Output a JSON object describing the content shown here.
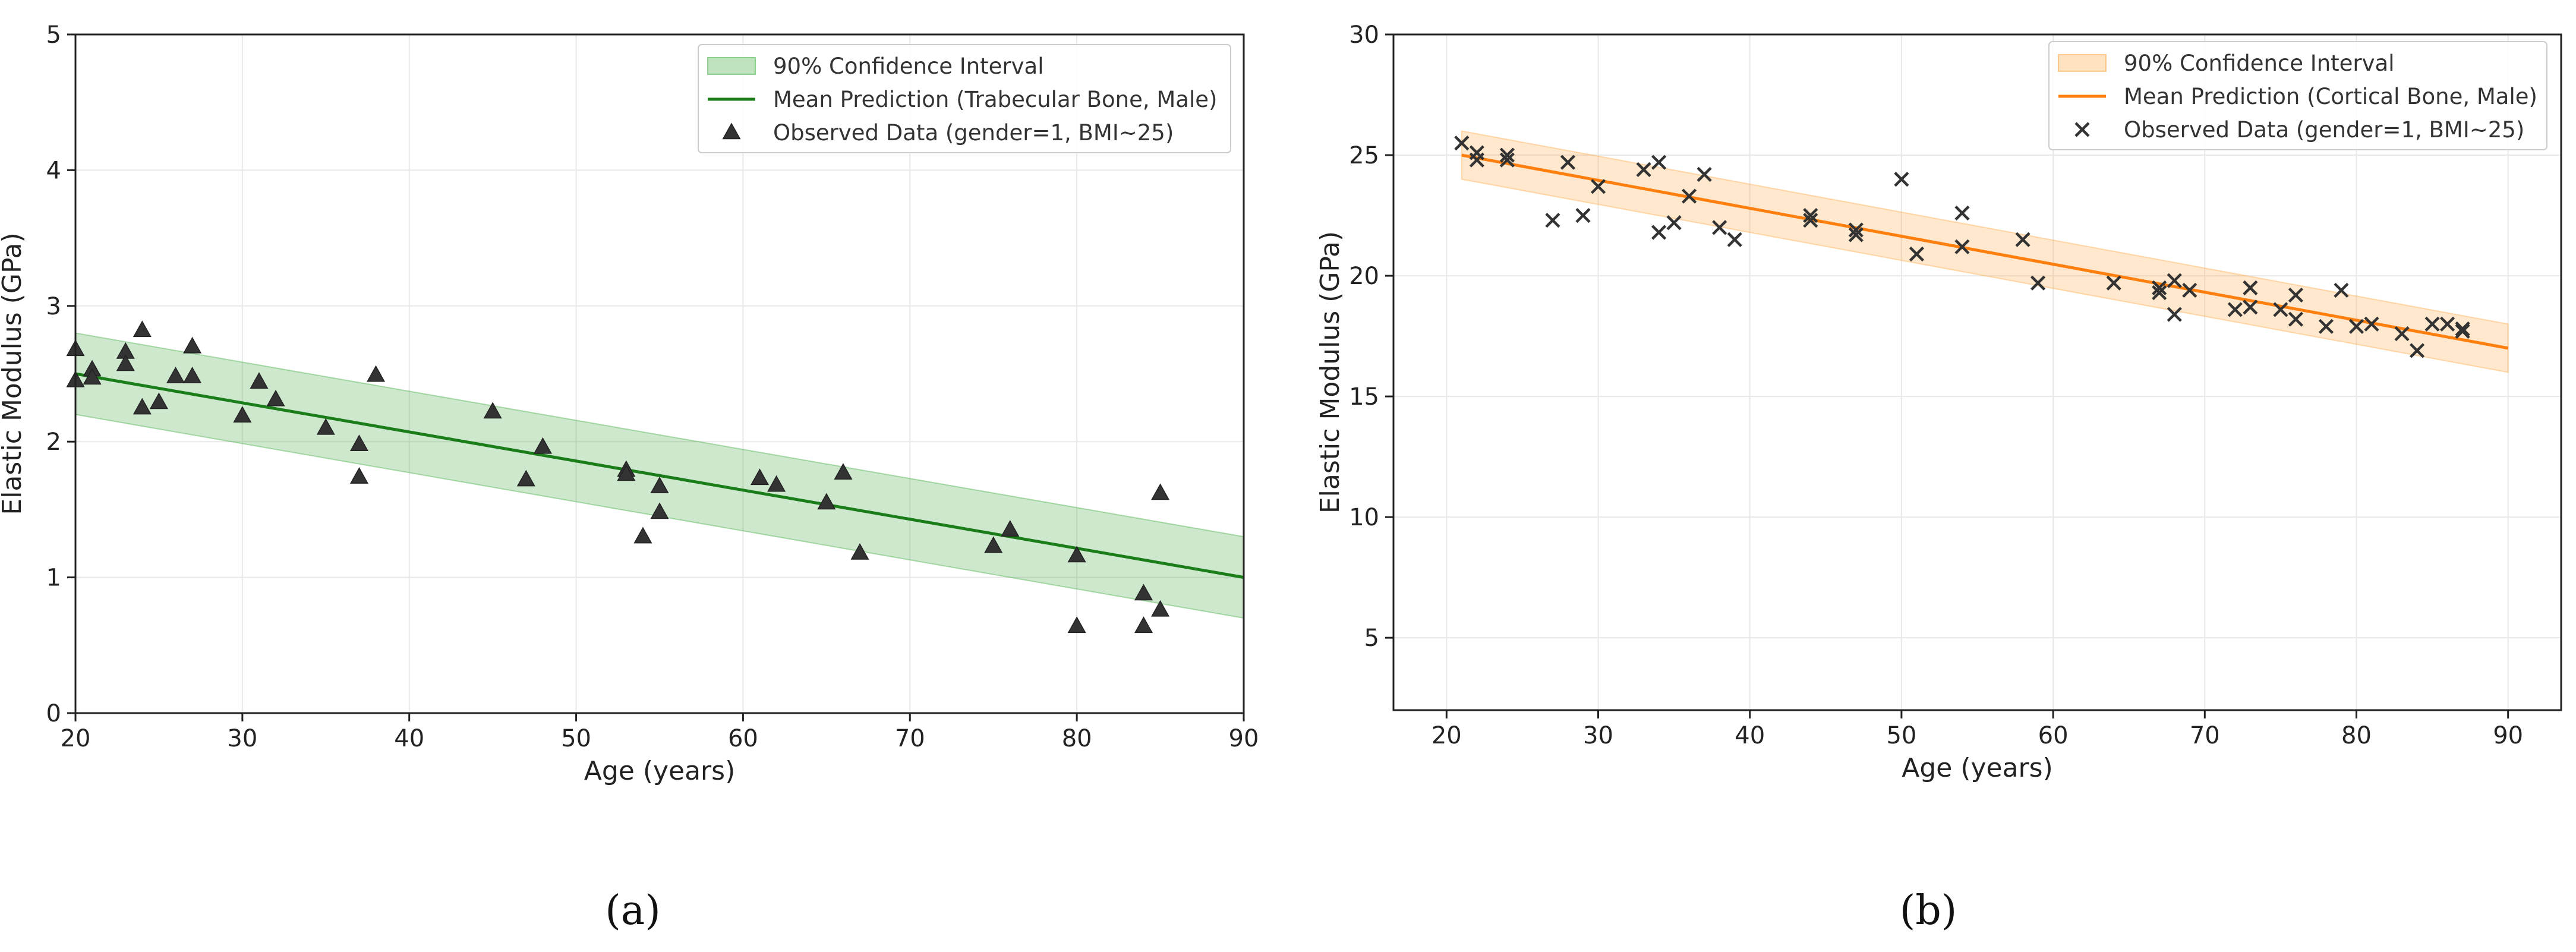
{
  "figure": {
    "panel_labels": [
      "(a)",
      "(b)"
    ]
  },
  "chart_data": [
    {
      "type": "scatter",
      "panel_label": "(a)",
      "title": "",
      "xlabel": "Age (years)",
      "ylabel": "Elastic Modulus (GPa)",
      "xlim": [
        20,
        90
      ],
      "ylim": [
        0,
        5
      ],
      "xticks": [
        20,
        30,
        40,
        50,
        60,
        70,
        80,
        90
      ],
      "yticks": [
        0,
        1,
        2,
        3,
        4,
        5
      ],
      "grid": true,
      "legend_position": "top-right",
      "colors": {
        "band": "#2ca02c",
        "line": "#1a7d1a",
        "marker": "#333333"
      },
      "series": [
        {
          "name": "90% Confidence Interval",
          "kind": "band",
          "x": [
            20,
            90
          ],
          "lower": [
            2.2,
            0.7
          ],
          "upper": [
            2.8,
            1.3
          ]
        },
        {
          "name": "Mean Prediction (Trabecular Bone, Male)",
          "kind": "line",
          "x": [
            20,
            90
          ],
          "y": [
            2.5,
            1.0
          ]
        },
        {
          "name": "Observed Data (gender=1, BMI~25)",
          "kind": "scatter",
          "marker": "triangle",
          "points": [
            [
              20,
              2.68
            ],
            [
              20,
              2.45
            ],
            [
              21,
              2.53
            ],
            [
              21,
              2.47
            ],
            [
              23,
              2.66
            ],
            [
              23,
              2.57
            ],
            [
              24,
              2.82
            ],
            [
              24,
              2.25
            ],
            [
              25,
              2.29
            ],
            [
              26,
              2.48
            ],
            [
              27,
              2.7
            ],
            [
              27,
              2.48
            ],
            [
              30,
              2.19
            ],
            [
              31,
              2.44
            ],
            [
              32,
              2.31
            ],
            [
              35,
              2.1
            ],
            [
              37,
              1.98
            ],
            [
              37,
              1.74
            ],
            [
              38,
              2.49
            ],
            [
              45,
              2.22
            ],
            [
              47,
              1.72
            ],
            [
              48,
              1.96
            ],
            [
              53,
              1.79
            ],
            [
              53,
              1.76
            ],
            [
              54,
              1.3
            ],
            [
              55,
              1.67
            ],
            [
              55,
              1.48
            ],
            [
              61,
              1.73
            ],
            [
              62,
              1.68
            ],
            [
              65,
              1.55
            ],
            [
              66,
              1.77
            ],
            [
              67,
              1.18
            ],
            [
              75,
              1.23
            ],
            [
              76,
              1.35
            ],
            [
              80,
              1.16
            ],
            [
              80,
              0.64
            ],
            [
              84,
              0.88
            ],
            [
              84,
              0.64
            ],
            [
              85,
              0.76
            ],
            [
              85,
              1.62
            ]
          ]
        }
      ]
    },
    {
      "type": "scatter",
      "panel_label": "(b)",
      "title": "",
      "xlabel": "Age (years)",
      "ylabel": "Elastic Modulus (GPa)",
      "xlim": [
        16.5,
        93.5
      ],
      "ylim": [
        2,
        30
      ],
      "xticks": [
        20,
        30,
        40,
        50,
        60,
        70,
        80,
        90
      ],
      "yticks": [
        5,
        10,
        15,
        20,
        25,
        30
      ],
      "grid": true,
      "legend_position": "top-right",
      "colors": {
        "band": "#ff9f2e",
        "line": "#ff7f0e",
        "marker": "#333333"
      },
      "series": [
        {
          "name": "90% Confidence Interval",
          "kind": "band",
          "x": [
            21,
            90
          ],
          "lower": [
            24.0,
            16.0
          ],
          "upper": [
            26.0,
            18.0
          ]
        },
        {
          "name": "Mean Prediction (Cortical Bone, Male)",
          "kind": "line",
          "x": [
            21,
            90
          ],
          "y": [
            25.0,
            17.0
          ]
        },
        {
          "name": "Observed Data (gender=1, BMI~25)",
          "kind": "scatter",
          "marker": "x",
          "points": [
            [
              21,
              25.5
            ],
            [
              22,
              25.1
            ],
            [
              22,
              24.8
            ],
            [
              24,
              25.0
            ],
            [
              24,
              24.8
            ],
            [
              27,
              22.3
            ],
            [
              28,
              24.7
            ],
            [
              29,
              22.5
            ],
            [
              30,
              23.7
            ],
            [
              33,
              24.4
            ],
            [
              34,
              24.7
            ],
            [
              34,
              21.8
            ],
            [
              35,
              22.2
            ],
            [
              36,
              23.3
            ],
            [
              37,
              24.2
            ],
            [
              38,
              22.0
            ],
            [
              39,
              21.5
            ],
            [
              44,
              22.5
            ],
            [
              44,
              22.3
            ],
            [
              47,
              21.9
            ],
            [
              47,
              21.7
            ],
            [
              50,
              24.0
            ],
            [
              51,
              20.9
            ],
            [
              54,
              22.6
            ],
            [
              54,
              21.2
            ],
            [
              58,
              21.5
            ],
            [
              59,
              19.7
            ],
            [
              64,
              19.7
            ],
            [
              67,
              19.5
            ],
            [
              67,
              19.3
            ],
            [
              68,
              19.8
            ],
            [
              68,
              18.4
            ],
            [
              69,
              19.4
            ],
            [
              72,
              18.6
            ],
            [
              73,
              19.5
            ],
            [
              73,
              18.7
            ],
            [
              75,
              18.6
            ],
            [
              76,
              19.2
            ],
            [
              76,
              18.2
            ],
            [
              78,
              17.9
            ],
            [
              79,
              19.4
            ],
            [
              80,
              17.9
            ],
            [
              81,
              18.0
            ],
            [
              83,
              17.6
            ],
            [
              84,
              16.9
            ],
            [
              85,
              18.0
            ],
            [
              86,
              18.0
            ],
            [
              87,
              17.8
            ],
            [
              87,
              17.7
            ]
          ]
        }
      ]
    }
  ]
}
